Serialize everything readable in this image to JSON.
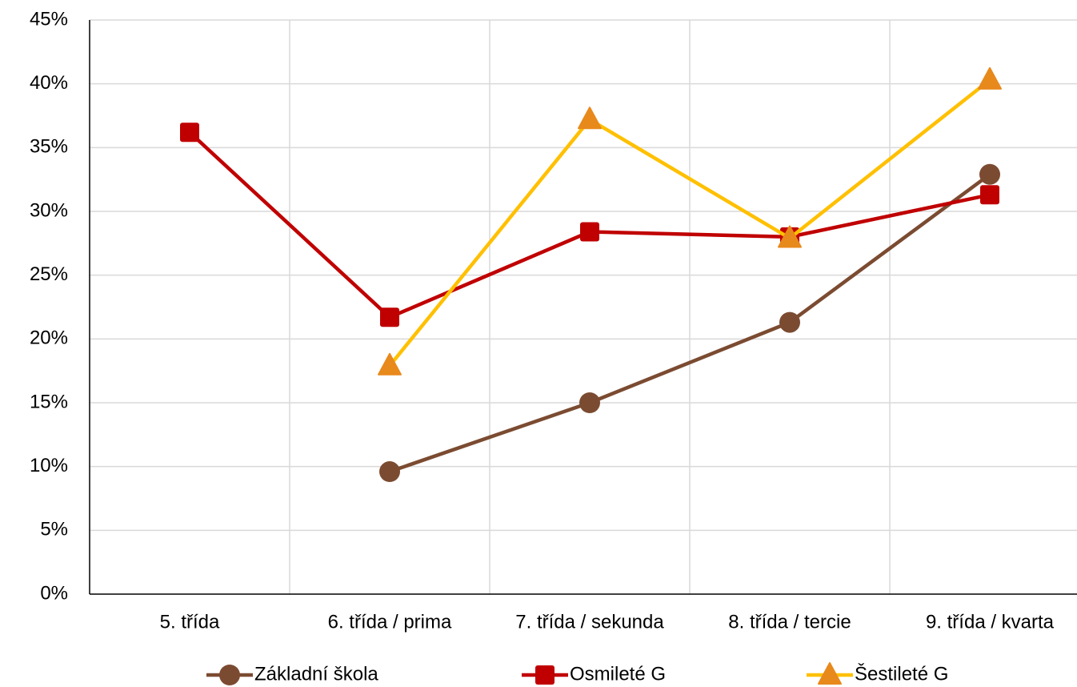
{
  "chart_data": {
    "type": "line",
    "categories": [
      "5. třída",
      "6. třída / prima",
      "7. třída / sekunda",
      "8. třída / tercie",
      "9. třída / kvarta"
    ],
    "series": [
      {
        "name": "Základní škola",
        "color": "#7b4b31",
        "marker": "circle",
        "marker_color": "#7b4b31",
        "values": [
          null,
          9.6,
          15.0,
          21.3,
          32.9
        ]
      },
      {
        "name": "Osmileté G",
        "color": "#c00000",
        "marker": "square",
        "marker_color": "#c00000",
        "values": [
          36.2,
          21.7,
          28.4,
          28.0,
          31.3
        ]
      },
      {
        "name": "Šestileté G",
        "color": "#ffc000",
        "marker": "triangle",
        "marker_color": "#e8891c",
        "values": [
          null,
          17.9,
          37.2,
          27.9,
          40.3
        ]
      }
    ],
    "ylim": [
      0,
      45
    ],
    "yticks": [
      {
        "value": 0,
        "label": "0%"
      },
      {
        "value": 5,
        "label": "5%"
      },
      {
        "value": 10,
        "label": "10%"
      },
      {
        "value": 15,
        "label": "15%"
      },
      {
        "value": 20,
        "label": "20%"
      },
      {
        "value": 25,
        "label": "25%"
      },
      {
        "value": 30,
        "label": "30%"
      },
      {
        "value": 35,
        "label": "35%"
      },
      {
        "value": 40,
        "label": "40%"
      },
      {
        "value": 45,
        "label": "45%"
      }
    ],
    "grid": true,
    "legend": "bottom"
  }
}
